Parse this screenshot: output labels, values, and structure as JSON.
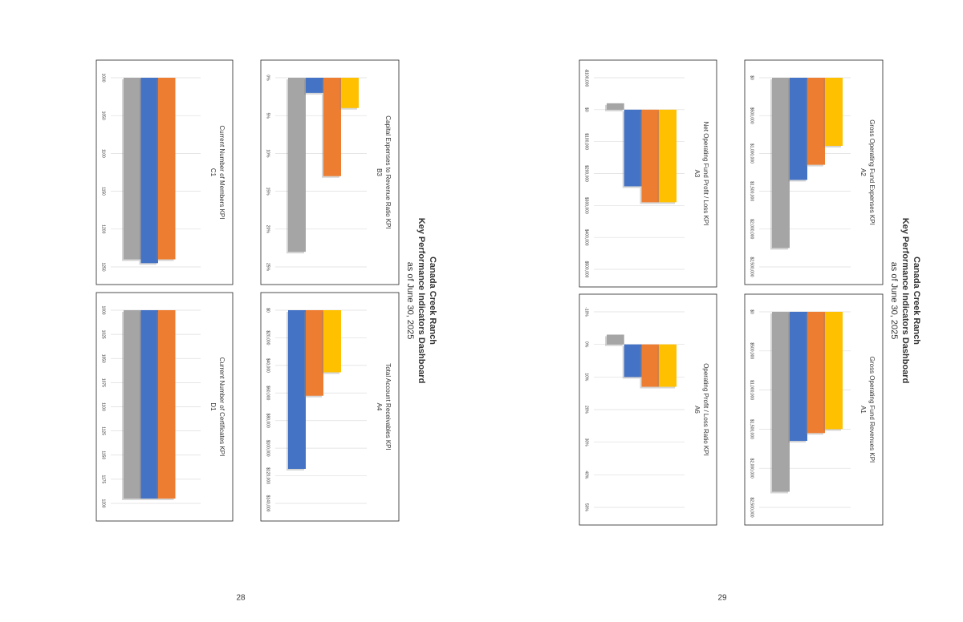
{
  "pages": [
    {
      "header": {
        "title": "Canada Creek Ranch",
        "subtitle": "Key Performance Indicators Dashboard",
        "date": "as of June 30, 2025"
      },
      "page_number": "28"
    },
    {
      "header": {
        "title": "Canada Creek Ranch",
        "subtitle": "Key Performance Indicators Dashboard",
        "date": "as of June 30, 2025"
      },
      "page_number": "29"
    }
  ],
  "chart_data": [
    {
      "type": "bar",
      "title": "Gross Operating Fund Expenses KPI",
      "code": "A2",
      "categories": [
        null,
        null,
        null,
        null
      ],
      "values": [
        2250000,
        1350000,
        1150000,
        900000
      ],
      "colors": [
        "#a5a5a5",
        "#4472c4",
        "#ed7d31",
        "#ffc000"
      ],
      "ylim": [
        0,
        2500000
      ],
      "yticks": [
        {
          "value": 0,
          "label": "$0"
        },
        {
          "value": 500000,
          "label": "$500,000"
        },
        {
          "value": 1000000,
          "label": "$1,000,000"
        },
        {
          "value": 1500000,
          "label": "$1,500,000"
        },
        {
          "value": 2000000,
          "label": "$2,000,000"
        },
        {
          "value": 2500000,
          "label": "$2,500,000"
        }
      ]
    },
    {
      "type": "bar",
      "title": "Gross Operating Fund Revenues KPI",
      "code": "A1",
      "categories": [
        null,
        null,
        null,
        null
      ],
      "values": [
        2300000,
        1650000,
        1550000,
        1500000
      ],
      "colors": [
        "#a5a5a5",
        "#4472c4",
        "#ed7d31",
        "#ffc000"
      ],
      "ylim": [
        0,
        2500000
      ],
      "yticks": [
        {
          "value": 0,
          "label": "$0"
        },
        {
          "value": 500000,
          "label": "$500,000"
        },
        {
          "value": 1000000,
          "label": "$1,000,000"
        },
        {
          "value": 1500000,
          "label": "$1,500,000"
        },
        {
          "value": 2000000,
          "label": "$2,000,000"
        },
        {
          "value": 2500000,
          "label": "$2,500,000"
        }
      ]
    },
    {
      "type": "bar",
      "title": "Net Operating Fund Profit / Loss KPI",
      "code": "A3",
      "categories": [
        null,
        null,
        null,
        null
      ],
      "values": [
        -20000,
        240000,
        290000,
        290000
      ],
      "colors": [
        "#a5a5a5",
        "#4472c4",
        "#ed7d31",
        "#ffc000"
      ],
      "ylim": [
        -100000,
        500000
      ],
      "yticks": [
        {
          "value": -100000,
          "label": "-$100,000"
        },
        {
          "value": 0,
          "label": "$0"
        },
        {
          "value": 100000,
          "label": "$100,000"
        },
        {
          "value": 200000,
          "label": "$200,000"
        },
        {
          "value": 300000,
          "label": "$300,000"
        },
        {
          "value": 400000,
          "label": "$400,000"
        },
        {
          "value": 500000,
          "label": "$500,000"
        }
      ]
    },
    {
      "type": "bar",
      "title": "Operating Profit / Loss Ratio KPI",
      "code": "A6",
      "categories": [
        null,
        null,
        null,
        null
      ],
      "values": [
        -3,
        10,
        13,
        13
      ],
      "colors": [
        "#a5a5a5",
        "#4472c4",
        "#ed7d31",
        "#ffc000"
      ],
      "ylim": [
        -10,
        50
      ],
      "yticks": [
        {
          "value": -10,
          "label": "-10%"
        },
        {
          "value": 0,
          "label": "0%"
        },
        {
          "value": 10,
          "label": "10%"
        },
        {
          "value": 20,
          "label": "20%"
        },
        {
          "value": 30,
          "label": "30%"
        },
        {
          "value": 40,
          "label": "40%"
        },
        {
          "value": 50,
          "label": "50%"
        }
      ]
    },
    {
      "type": "bar",
      "title": "Capital Expenses to Revenue Ratio KPI",
      "code": "B3",
      "categories": [
        null,
        null,
        null,
        null
      ],
      "values": [
        23,
        2,
        13,
        4
      ],
      "colors": [
        "#a5a5a5",
        "#4472c4",
        "#ed7d31",
        "#ffc000"
      ],
      "ylim": [
        0,
        25
      ],
      "yticks": [
        {
          "value": 0,
          "label": "0%"
        },
        {
          "value": 5,
          "label": "5%"
        },
        {
          "value": 10,
          "label": "10%"
        },
        {
          "value": 15,
          "label": "15%"
        },
        {
          "value": 20,
          "label": "20%"
        },
        {
          "value": 25,
          "label": "25%"
        }
      ]
    },
    {
      "type": "bar",
      "title": "Total Account Receivables KPI",
      "code": "A4",
      "categories": [
        null,
        null,
        null
      ],
      "values": [
        115000,
        62000,
        45000
      ],
      "colors": [
        "#4472c4",
        "#ed7d31",
        "#ffc000"
      ],
      "ylim": [
        0,
        140000
      ],
      "yticks": [
        {
          "value": 0,
          "label": "$0"
        },
        {
          "value": 20000,
          "label": "$20,000"
        },
        {
          "value": 40000,
          "label": "$40,000"
        },
        {
          "value": 60000,
          "label": "$60,000"
        },
        {
          "value": 80000,
          "label": "$80,000"
        },
        {
          "value": 100000,
          "label": "$100,000"
        },
        {
          "value": 120000,
          "label": "$120,000"
        },
        {
          "value": 140000,
          "label": "$140,000"
        }
      ]
    },
    {
      "type": "bar",
      "title": "Current Number of Members KPI",
      "code": "C1",
      "categories": [
        null,
        null,
        null
      ],
      "values": [
        1240,
        1245,
        1240
      ],
      "colors": [
        "#a5a5a5",
        "#4472c4",
        "#ed7d31"
      ],
      "ylim": [
        1000,
        1250
      ],
      "yticks": [
        1000,
        1050,
        1100,
        1150,
        1200,
        1250
      ]
    },
    {
      "type": "bar",
      "title": "Current Number of Certificates KPI",
      "code": "D1",
      "categories": [
        null,
        null,
        null
      ],
      "values": [
        1195,
        1195,
        1195
      ],
      "colors": [
        "#a5a5a5",
        "#4472c4",
        "#ed7d31"
      ],
      "ylim": [
        1000,
        1200
      ],
      "yticks": [
        1000,
        1025,
        1050,
        1075,
        1100,
        1125,
        1150,
        1175,
        1200
      ]
    }
  ]
}
